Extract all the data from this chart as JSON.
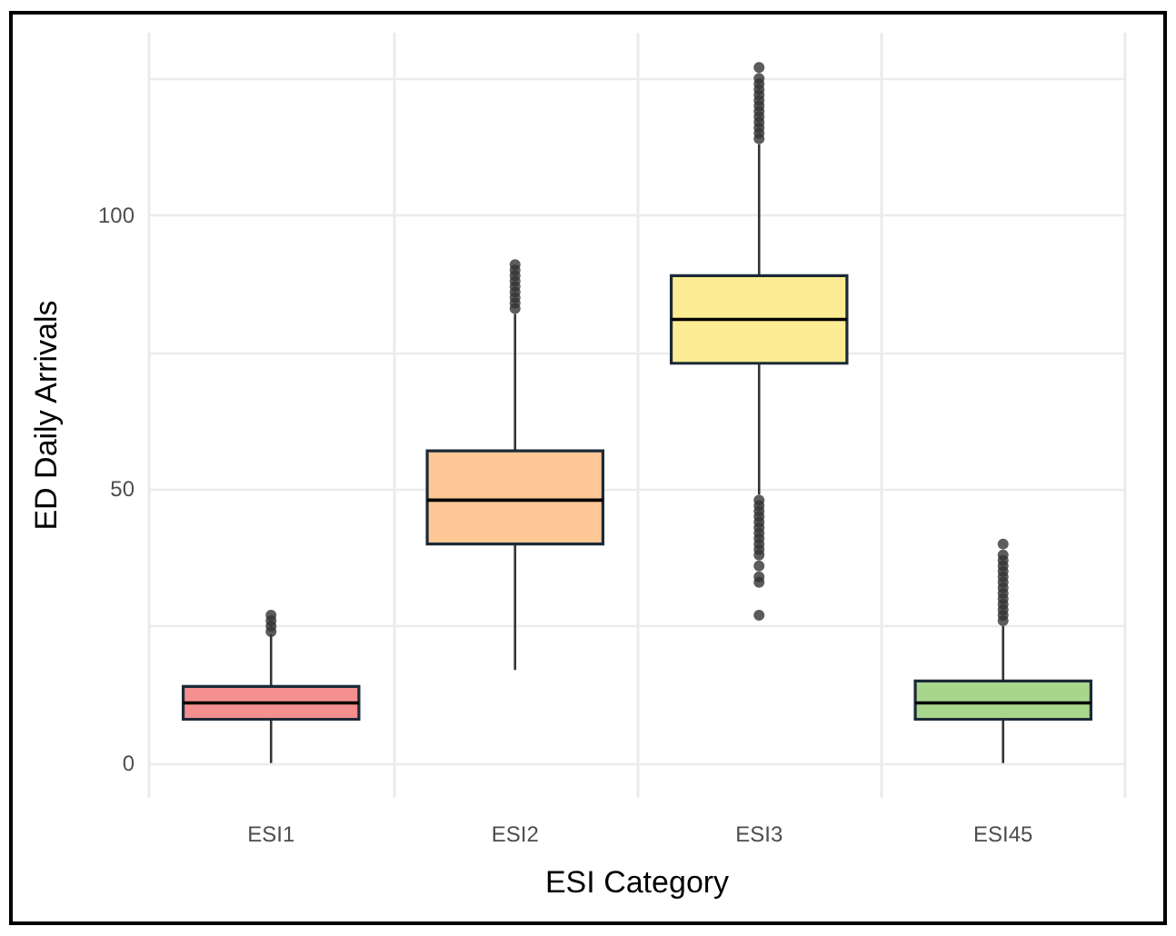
{
  "chart_data": {
    "type": "box",
    "xlabel": "ESI Category",
    "ylabel": "ED Daily Arrivals",
    "categories": [
      "ESI1",
      "ESI2",
      "ESI3",
      "ESI45"
    ],
    "colors": [
      "#f48f8f",
      "#fdc896",
      "#fcec93",
      "#a8d68c"
    ],
    "boxes": [
      {
        "low": 0,
        "q1": 8,
        "median": 11,
        "q3": 14,
        "high": 23.5,
        "outliers": [
          24,
          25,
          26,
          27
        ]
      },
      {
        "low": 17,
        "q1": 40,
        "median": 48,
        "q3": 57,
        "high": 82,
        "outliers": [
          83,
          84,
          85,
          86,
          87,
          88,
          89,
          90,
          91
        ]
      },
      {
        "low": 49,
        "q1": 73,
        "median": 81,
        "q3": 89,
        "high": 113,
        "outliers": [
          27,
          33,
          34,
          36,
          38,
          39,
          40,
          41,
          42,
          43,
          44,
          45,
          46,
          47,
          48,
          114,
          115,
          116,
          117,
          118,
          119,
          120,
          121,
          122,
          123,
          124,
          125,
          127
        ]
      },
      {
        "low": 0,
        "q1": 8,
        "median": 11,
        "q3": 15,
        "high": 25,
        "outliers": [
          26,
          27,
          28,
          29,
          30,
          31,
          32,
          33,
          34,
          35,
          36,
          37,
          38,
          40
        ]
      }
    ],
    "ylim": [
      -6.35,
      133.35
    ],
    "yticks": [
      0,
      {
        "value": 25,
        "label": null
      },
      50,
      {
        "value": 75,
        "label": null
      },
      100,
      {
        "value": 125,
        "label": null
      }
    ],
    "grid": true
  }
}
